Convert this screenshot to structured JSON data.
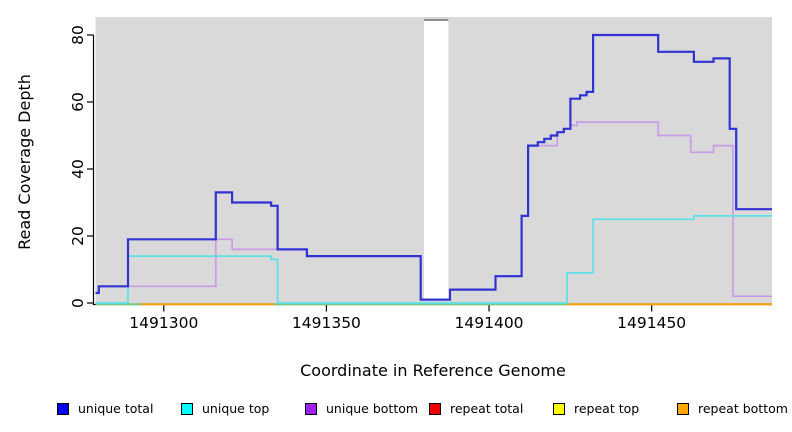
{
  "chart_data": {
    "type": "line",
    "step": true,
    "title": "",
    "xlabel": "Coordinate in Reference Genome",
    "ylabel": "Read Coverage Depth",
    "xlim": [
      1491279,
      1491487
    ],
    "ylim": [
      0,
      80
    ],
    "x_ticks": [
      1491300,
      1491350,
      1491400,
      1491450
    ],
    "y_ticks": [
      0,
      20,
      40,
      60,
      80
    ],
    "grid": false,
    "legend_position": "bottom",
    "plot_background": "#D9D9D9",
    "gap_region": {
      "x_start": 1491380,
      "x_end": 1491387.5,
      "cap_color": "#8C8C8C"
    },
    "series": [
      {
        "name": "unique total",
        "legend_color": "#0000EE",
        "line_color": "#3232D2",
        "line_width": 2.2,
        "draw_path": true,
        "points": [
          [
            1491279,
            3
          ],
          [
            1491280,
            5
          ],
          [
            1491289,
            19
          ],
          [
            1491316,
            33
          ],
          [
            1491321,
            30
          ],
          [
            1491333,
            29
          ],
          [
            1491335,
            16
          ],
          [
            1491344,
            14
          ],
          [
            1491379,
            1
          ],
          [
            1491388,
            4
          ],
          [
            1491402,
            8
          ],
          [
            1491410,
            26
          ],
          [
            1491412,
            47
          ],
          [
            1491415,
            48
          ],
          [
            1491417,
            49
          ],
          [
            1491419,
            50
          ],
          [
            1491421,
            51
          ],
          [
            1491423,
            52
          ],
          [
            1491425,
            61
          ],
          [
            1491428,
            62
          ],
          [
            1491430,
            63
          ],
          [
            1491432,
            80
          ],
          [
            1491452,
            75
          ],
          [
            1491463,
            72
          ],
          [
            1491469,
            73
          ],
          [
            1491474,
            52
          ],
          [
            1491476,
            28
          ]
        ]
      },
      {
        "name": "unique top",
        "legend_color": "#00FFFF",
        "line_color": "#5CE1E8",
        "line_width": 1.7,
        "draw_path": true,
        "points": [
          [
            1491279,
            0
          ],
          [
            1491289,
            14
          ],
          [
            1491333,
            13
          ],
          [
            1491335,
            0
          ],
          [
            1491424,
            9
          ],
          [
            1491432,
            25
          ],
          [
            1491463,
            26
          ]
        ]
      },
      {
        "name": "unique bottom",
        "legend_color": "#A020F0",
        "line_color": "#C99CE8",
        "line_width": 1.7,
        "draw_path": true,
        "points": [
          [
            1491279,
            3
          ],
          [
            1491280,
            5
          ],
          [
            1491316,
            19
          ],
          [
            1491321,
            16
          ],
          [
            1491335,
            16
          ],
          [
            1491344,
            14
          ],
          [
            1491379,
            1
          ],
          [
            1491388,
            4
          ],
          [
            1491402,
            8
          ],
          [
            1491410,
            26
          ],
          [
            1491412,
            47
          ],
          [
            1491421,
            51
          ],
          [
            1491423,
            52
          ],
          [
            1491425,
            53
          ],
          [
            1491427,
            54
          ],
          [
            1491452,
            50
          ],
          [
            1491462,
            45
          ],
          [
            1491469,
            47
          ],
          [
            1491475,
            2
          ]
        ]
      },
      {
        "name": "repeat total",
        "legend_color": "#EE0000",
        "line_color": "#EE0000",
        "line_width": 1.7,
        "draw_path": false,
        "points": [
          [
            1491279,
            0
          ],
          [
            1491487,
            0
          ]
        ]
      },
      {
        "name": "repeat top",
        "legend_color": "#FFFF00",
        "line_color": "#FFFF00",
        "line_width": 1.7,
        "draw_path": false,
        "points": [
          [
            1491279,
            0
          ],
          [
            1491487,
            0
          ]
        ]
      },
      {
        "name": "repeat bottom",
        "legend_color": "#FFA500",
        "line_color": "#FF9D0A",
        "line_width": 1.7,
        "draw_path": false,
        "points": [
          [
            1491279,
            0
          ],
          [
            1491487,
            0
          ]
        ]
      }
    ],
    "baseline_segments": [
      {
        "name": "zero-line",
        "color": "#7FC87F",
        "x_start": 1491279,
        "x_end": 1491487
      },
      {
        "name": "repeat-bottom-left",
        "color": "#FF9D0A",
        "x_start": 1491293,
        "x_end": 1491334
      },
      {
        "name": "repeat-bottom-right",
        "color": "#FF9D0A",
        "x_start": 1491424,
        "x_end": 1491487
      }
    ]
  }
}
